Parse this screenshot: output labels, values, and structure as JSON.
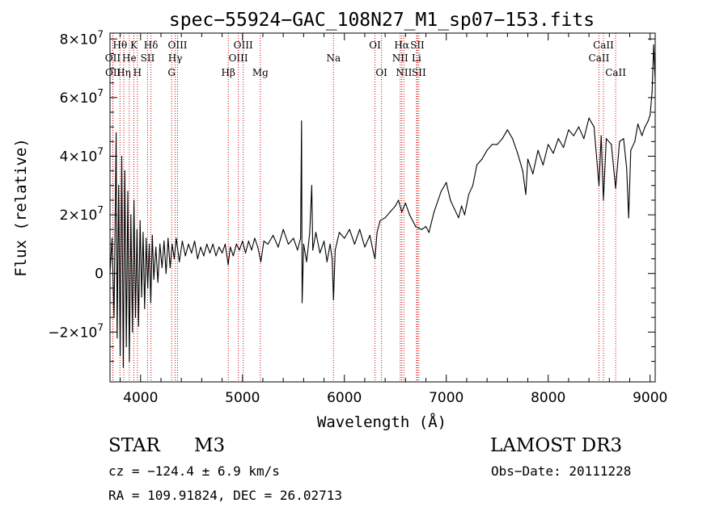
{
  "chart_data": {
    "type": "line",
    "title": "spec−55924−GAC_108N27_M1_sp07−153.fits",
    "xlabel": "Wavelength (Å)",
    "ylabel": "Flux (relative)",
    "xlim": [
      3700,
      9050
    ],
    "ylim": [
      -37000000,
      82000000
    ],
    "grid": false,
    "x_ticks": [
      {
        "value": 4000,
        "label": "4000"
      },
      {
        "value": 5000,
        "label": "5000"
      },
      {
        "value": 6000,
        "label": "6000"
      },
      {
        "value": 7000,
        "label": "7000"
      },
      {
        "value": 8000,
        "label": "8000"
      },
      {
        "value": 9000,
        "label": "9000"
      }
    ],
    "y_ticks": [
      {
        "value": -20000000,
        "label": "−2×10",
        "exp": "7"
      },
      {
        "value": 0,
        "label": "0",
        "exp": ""
      },
      {
        "value": 20000000,
        "label": "2×10",
        "exp": "7"
      },
      {
        "value": 40000000,
        "label": "4×10",
        "exp": "7"
      },
      {
        "value": 60000000,
        "label": "6×10",
        "exp": "7"
      },
      {
        "value": 80000000,
        "label": "8×10",
        "exp": "7"
      }
    ],
    "series": [
      {
        "name": "flux",
        "points": [
          [
            3700,
            0
          ],
          [
            3720,
            12000000
          ],
          [
            3740,
            -15000000
          ],
          [
            3760,
            48000000
          ],
          [
            3770,
            -22000000
          ],
          [
            3785,
            30000000
          ],
          [
            3800,
            -28000000
          ],
          [
            3815,
            40000000
          ],
          [
            3830,
            -32000000
          ],
          [
            3845,
            35000000
          ],
          [
            3860,
            -25000000
          ],
          [
            3875,
            28000000
          ],
          [
            3890,
            -30000000
          ],
          [
            3905,
            20000000
          ],
          [
            3920,
            -20000000
          ],
          [
            3935,
            25000000
          ],
          [
            3950,
            -15000000
          ],
          [
            3965,
            15000000
          ],
          [
            3980,
            -18000000
          ],
          [
            3995,
            18000000
          ],
          [
            4010,
            -8000000
          ],
          [
            4025,
            14000000
          ],
          [
            4040,
            -12000000
          ],
          [
            4055,
            12000000
          ],
          [
            4070,
            -5000000
          ],
          [
            4085,
            10000000
          ],
          [
            4100,
            -10000000
          ],
          [
            4115,
            13000000
          ],
          [
            4130,
            -2000000
          ],
          [
            4150,
            9000000
          ],
          [
            4170,
            -3000000
          ],
          [
            4190,
            10000000
          ],
          [
            4210,
            2000000
          ],
          [
            4230,
            11000000
          ],
          [
            4250,
            0
          ],
          [
            4270,
            12000000
          ],
          [
            4290,
            2000000
          ],
          [
            4310,
            10000000
          ],
          [
            4330,
            5000000
          ],
          [
            4350,
            12000000
          ],
          [
            4380,
            4000000
          ],
          [
            4410,
            11000000
          ],
          [
            4440,
            6000000
          ],
          [
            4470,
            10000000
          ],
          [
            4500,
            7000000
          ],
          [
            4530,
            11000000
          ],
          [
            4560,
            5000000
          ],
          [
            4590,
            9000000
          ],
          [
            4620,
            6000000
          ],
          [
            4650,
            10000000
          ],
          [
            4680,
            7000000
          ],
          [
            4710,
            10000000
          ],
          [
            4740,
            6000000
          ],
          [
            4770,
            9000000
          ],
          [
            4800,
            7000000
          ],
          [
            4830,
            10000000
          ],
          [
            4860,
            3000000
          ],
          [
            4880,
            9000000
          ],
          [
            4910,
            6000000
          ],
          [
            4940,
            10000000
          ],
          [
            4970,
            8000000
          ],
          [
            5000,
            11000000
          ],
          [
            5030,
            7000000
          ],
          [
            5060,
            11000000
          ],
          [
            5090,
            8000000
          ],
          [
            5120,
            12000000
          ],
          [
            5150,
            9000000
          ],
          [
            5180,
            4000000
          ],
          [
            5210,
            11000000
          ],
          [
            5250,
            10000000
          ],
          [
            5300,
            13000000
          ],
          [
            5350,
            9000000
          ],
          [
            5400,
            15000000
          ],
          [
            5450,
            10000000
          ],
          [
            5500,
            12000000
          ],
          [
            5540,
            8000000
          ],
          [
            5570,
            12000000
          ],
          [
            5580,
            52000000
          ],
          [
            5585,
            -10000000
          ],
          [
            5600,
            10000000
          ],
          [
            5630,
            4000000
          ],
          [
            5660,
            14000000
          ],
          [
            5680,
            30000000
          ],
          [
            5690,
            8000000
          ],
          [
            5720,
            14000000
          ],
          [
            5760,
            7000000
          ],
          [
            5800,
            11000000
          ],
          [
            5830,
            4000000
          ],
          [
            5860,
            10000000
          ],
          [
            5880,
            5000000
          ],
          [
            5893,
            -9000000
          ],
          [
            5910,
            8000000
          ],
          [
            5950,
            14000000
          ],
          [
            6000,
            12000000
          ],
          [
            6050,
            15000000
          ],
          [
            6100,
            10000000
          ],
          [
            6150,
            15000000
          ],
          [
            6200,
            9000000
          ],
          [
            6250,
            13000000
          ],
          [
            6280,
            8000000
          ],
          [
            6300,
            5000000
          ],
          [
            6320,
            14000000
          ],
          [
            6350,
            18000000
          ],
          [
            6400,
            19000000
          ],
          [
            6450,
            21000000
          ],
          [
            6500,
            23000000
          ],
          [
            6530,
            25000000
          ],
          [
            6563,
            21000000
          ],
          [
            6600,
            24000000
          ],
          [
            6640,
            20000000
          ],
          [
            6700,
            16000000
          ],
          [
            6760,
            15000000
          ],
          [
            6800,
            16000000
          ],
          [
            6830,
            14000000
          ],
          [
            6880,
            21000000
          ],
          [
            6950,
            28000000
          ],
          [
            7000,
            31000000
          ],
          [
            7040,
            25000000
          ],
          [
            7080,
            22000000
          ],
          [
            7120,
            19000000
          ],
          [
            7150,
            23000000
          ],
          [
            7180,
            20000000
          ],
          [
            7220,
            27000000
          ],
          [
            7260,
            30000000
          ],
          [
            7300,
            37000000
          ],
          [
            7350,
            39000000
          ],
          [
            7400,
            42000000
          ],
          [
            7450,
            44000000
          ],
          [
            7500,
            44000000
          ],
          [
            7550,
            46000000
          ],
          [
            7600,
            49000000
          ],
          [
            7650,
            46000000
          ],
          [
            7700,
            41000000
          ],
          [
            7750,
            35000000
          ],
          [
            7780,
            27000000
          ],
          [
            7800,
            39000000
          ],
          [
            7850,
            34000000
          ],
          [
            7900,
            42000000
          ],
          [
            7950,
            37000000
          ],
          [
            8000,
            44000000
          ],
          [
            8050,
            41000000
          ],
          [
            8100,
            46000000
          ],
          [
            8150,
            43000000
          ],
          [
            8200,
            49000000
          ],
          [
            8250,
            47000000
          ],
          [
            8300,
            50000000
          ],
          [
            8350,
            46000000
          ],
          [
            8400,
            53000000
          ],
          [
            8450,
            50000000
          ],
          [
            8498,
            30000000
          ],
          [
            8520,
            47000000
          ],
          [
            8542,
            25000000
          ],
          [
            8570,
            46000000
          ],
          [
            8620,
            44000000
          ],
          [
            8662,
            29000000
          ],
          [
            8700,
            45000000
          ],
          [
            8740,
            46000000
          ],
          [
            8770,
            36000000
          ],
          [
            8790,
            19000000
          ],
          [
            8810,
            42000000
          ],
          [
            8850,
            45000000
          ],
          [
            8880,
            51000000
          ],
          [
            8920,
            47000000
          ],
          [
            8950,
            50000000
          ],
          [
            8980,
            52000000
          ],
          [
            9000,
            54000000
          ],
          [
            9020,
            62000000
          ],
          [
            9035,
            78000000
          ],
          [
            9050,
            66000000
          ]
        ]
      }
    ],
    "annotations": [
      {
        "label": "Hθ",
        "wavelength": 3798,
        "row": 1
      },
      {
        "label": "OII",
        "wavelength": 3727,
        "row": 2
      },
      {
        "label": "OII",
        "wavelength": 3729,
        "row": 3
      },
      {
        "label": "He",
        "wavelength": 3889,
        "row": 2
      },
      {
        "label": "Hη",
        "wavelength": 3835,
        "row": 3
      },
      {
        "label": "K",
        "wavelength": 3934,
        "row": 1
      },
      {
        "label": "SII",
        "wavelength": 4069,
        "row": 2
      },
      {
        "label": "H",
        "wavelength": 3969,
        "row": 3
      },
      {
        "label": "Hδ",
        "wavelength": 4102,
        "row": 1
      },
      {
        "label": "OIII",
        "wavelength": 4363,
        "row": 1
      },
      {
        "label": "Hγ",
        "wavelength": 4340,
        "row": 2
      },
      {
        "label": "G",
        "wavelength": 4305,
        "row": 3
      },
      {
        "label": "OIII",
        "wavelength": 5007,
        "row": 1
      },
      {
        "label": "OIII",
        "wavelength": 4959,
        "row": 2
      },
      {
        "label": "Hβ",
        "wavelength": 4861,
        "row": 3
      },
      {
        "label": "Mg",
        "wavelength": 5175,
        "row": 3
      },
      {
        "label": "Na",
        "wavelength": 5893,
        "row": 2
      },
      {
        "label": "OI",
        "wavelength": 6300,
        "row": 1
      },
      {
        "label": "OI",
        "wavelength": 6364,
        "row": 3
      },
      {
        "label": "Hα",
        "wavelength": 6563,
        "row": 1
      },
      {
        "label": "NII",
        "wavelength": 6548,
        "row": 2
      },
      {
        "label": "NII",
        "wavelength": 6584,
        "row": 3
      },
      {
        "label": "SII",
        "wavelength": 6716,
        "row": 1
      },
      {
        "label": "Li",
        "wavelength": 6708,
        "row": 2
      },
      {
        "label": "SII",
        "wavelength": 6731,
        "row": 3
      },
      {
        "label": "CaII",
        "wavelength": 8542,
        "row": 1
      },
      {
        "label": "CaII",
        "wavelength": 8498,
        "row": 2
      },
      {
        "label": "CaII",
        "wavelength": 8662,
        "row": 3
      }
    ]
  },
  "info": {
    "class": "STAR",
    "subclass": "M3",
    "survey": "LAMOST DR3",
    "cz": "cz = −124.4 ± 6.9 km/s",
    "obs_date": "Obs−Date: 20111228",
    "coords": "RA = 109.91824, DEC =  26.02713"
  },
  "colors": {
    "line": "#000000",
    "marker": "#cc0000",
    "text": "#000000"
  }
}
